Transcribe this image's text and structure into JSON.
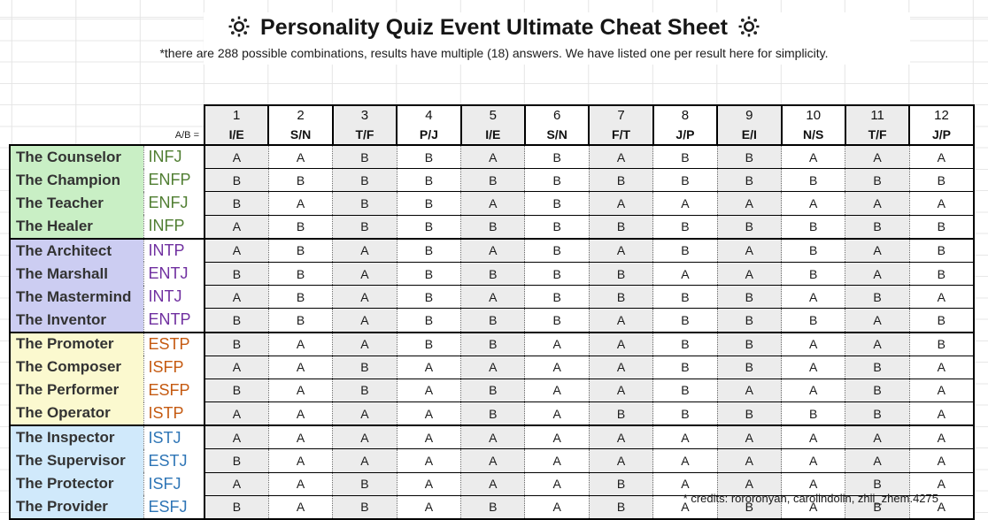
{
  "title": {
    "text": "Personality Quiz Event Ultimate Cheat Sheet"
  },
  "subtitle": "*there are 288 possible combinations, results have multiple (18) answers. We have listed one per result here for simplicity.",
  "answer_key_label": "A/B =",
  "questions": [
    {
      "num": "1",
      "pair": "I/E"
    },
    {
      "num": "2",
      "pair": "S/N"
    },
    {
      "num": "3",
      "pair": "T/F"
    },
    {
      "num": "4",
      "pair": "P/J"
    },
    {
      "num": "5",
      "pair": "I/E"
    },
    {
      "num": "6",
      "pair": "S/N"
    },
    {
      "num": "7",
      "pair": "F/T"
    },
    {
      "num": "8",
      "pair": "J/P"
    },
    {
      "num": "9",
      "pair": "E/I"
    },
    {
      "num": "10",
      "pair": "N/S"
    },
    {
      "num": "11",
      "pair": "T/F"
    },
    {
      "num": "12",
      "pair": "J/P"
    }
  ],
  "groups": [
    {
      "bg": "#c9efc5",
      "code_color": "#507e32",
      "rows": [
        {
          "label": "The Counselor",
          "code": "INFJ",
          "answers": [
            "A",
            "A",
            "B",
            "B",
            "A",
            "B",
            "A",
            "B",
            "B",
            "A",
            "A",
            "A"
          ]
        },
        {
          "label": "The Champion",
          "code": "ENFP",
          "answers": [
            "B",
            "B",
            "B",
            "B",
            "B",
            "B",
            "B",
            "B",
            "B",
            "B",
            "B",
            "B"
          ]
        },
        {
          "label": "The Teacher",
          "code": "ENFJ",
          "answers": [
            "B",
            "A",
            "B",
            "B",
            "A",
            "B",
            "A",
            "A",
            "A",
            "A",
            "A",
            "A"
          ]
        },
        {
          "label": "The Healer",
          "code": "INFP",
          "answers": [
            "A",
            "B",
            "B",
            "B",
            "B",
            "B",
            "B",
            "B",
            "B",
            "B",
            "B",
            "B"
          ]
        }
      ]
    },
    {
      "bg": "#cccdf2",
      "code_color": "#7030a0",
      "rows": [
        {
          "label": "The Architect",
          "code": "INTP",
          "answers": [
            "A",
            "B",
            "A",
            "B",
            "A",
            "B",
            "A",
            "B",
            "A",
            "B",
            "A",
            "B"
          ]
        },
        {
          "label": "The Marshall",
          "code": "ENTJ",
          "answers": [
            "B",
            "B",
            "A",
            "B",
            "B",
            "B",
            "B",
            "A",
            "A",
            "B",
            "A",
            "B"
          ]
        },
        {
          "label": "The Mastermind",
          "code": "INTJ",
          "answers": [
            "A",
            "B",
            "A",
            "B",
            "A",
            "B",
            "B",
            "B",
            "B",
            "A",
            "B",
            "A"
          ]
        },
        {
          "label": "The Inventor",
          "code": "ENTP",
          "answers": [
            "B",
            "B",
            "A",
            "B",
            "B",
            "B",
            "A",
            "B",
            "B",
            "B",
            "A",
            "B"
          ]
        }
      ]
    },
    {
      "bg": "#fbf9cf",
      "code_color": "#c55a11",
      "rows": [
        {
          "label": "The Promoter",
          "code": "ESTP",
          "answers": [
            "B",
            "A",
            "A",
            "B",
            "B",
            "A",
            "A",
            "B",
            "B",
            "A",
            "A",
            "B"
          ]
        },
        {
          "label": "The Composer",
          "code": "ISFP",
          "answers": [
            "A",
            "A",
            "B",
            "A",
            "A",
            "A",
            "A",
            "B",
            "B",
            "A",
            "B",
            "A"
          ]
        },
        {
          "label": "The Performer",
          "code": "ESFP",
          "answers": [
            "B",
            "A",
            "B",
            "A",
            "B",
            "A",
            "A",
            "B",
            "A",
            "A",
            "B",
            "A"
          ]
        },
        {
          "label": "The Operator",
          "code": "ISTP",
          "answers": [
            "A",
            "A",
            "A",
            "A",
            "B",
            "A",
            "B",
            "B",
            "B",
            "B",
            "B",
            "A"
          ]
        }
      ]
    },
    {
      "bg": "#d0e9fb",
      "code_color": "#2e75b6",
      "rows": [
        {
          "label": "The Inspector",
          "code": "ISTJ",
          "answers": [
            "A",
            "A",
            "A",
            "A",
            "A",
            "A",
            "A",
            "A",
            "A",
            "A",
            "A",
            "A"
          ]
        },
        {
          "label": "The Supervisor",
          "code": "ESTJ",
          "answers": [
            "B",
            "A",
            "A",
            "A",
            "A",
            "A",
            "A",
            "A",
            "A",
            "A",
            "A",
            "A"
          ]
        },
        {
          "label": "The Protector",
          "code": "ISFJ",
          "answers": [
            "A",
            "A",
            "B",
            "A",
            "A",
            "A",
            "B",
            "A",
            "A",
            "A",
            "B",
            "A"
          ]
        },
        {
          "label": "The Provider",
          "code": "ESFJ",
          "answers": [
            "B",
            "A",
            "B",
            "A",
            "B",
            "A",
            "B",
            "A",
            "B",
            "A",
            "B",
            "A"
          ]
        }
      ]
    }
  ],
  "footer": {
    "credits": "* credits: rororonyan, carolindolin, zhii_zhem.4275"
  },
  "icons": {
    "title_left": "sun-icon",
    "title_right": "sun-icon"
  },
  "colors": {
    "shaded_column": "#ececec",
    "grid_line": "#e4e4e4",
    "border": "#000000",
    "name_text": "#333333"
  }
}
